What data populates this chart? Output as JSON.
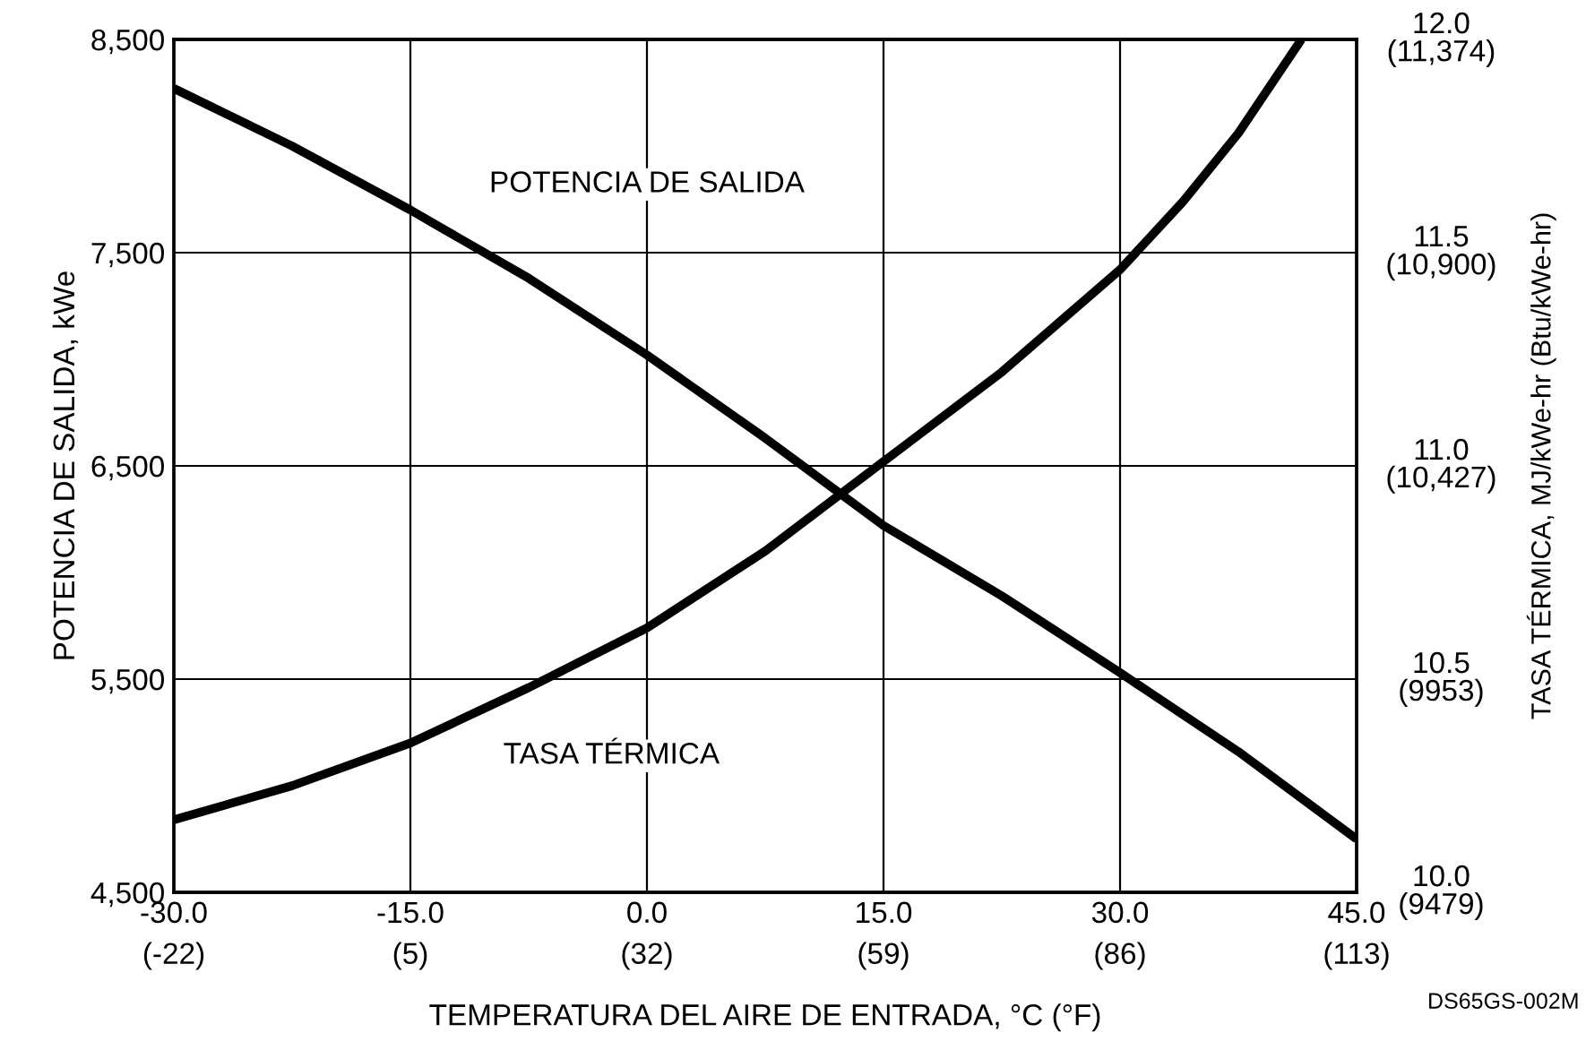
{
  "chart_data": {
    "type": "line",
    "xlabel": "TEMPERATURA DEL AIRE DE ENTRADA, °C (°F)",
    "ylabel": "POTENCIA DE SALIDA, kWe",
    "y2label": "TASA TÉRMICA, MJ/kWe-hr (Btu/kWe-hr)",
    "xlim": [
      -30,
      45
    ],
    "xticks": [
      {
        "value": -30,
        "label": "-30.0"
      },
      {
        "value": -15,
        "label": "-15.0"
      },
      {
        "value": 0,
        "label": "0.0"
      },
      {
        "value": 15,
        "label": "15.0"
      },
      {
        "value": 30,
        "label": "30.0"
      },
      {
        "value": 45,
        "label": "45.0"
      }
    ],
    "x2lim": [
      -22,
      113
    ],
    "x2ticks": [
      {
        "value": -22,
        "label": "(-22)"
      },
      {
        "value": 5,
        "label": "(5)"
      },
      {
        "value": 32,
        "label": "(32)"
      },
      {
        "value": 59,
        "label": "(59)"
      },
      {
        "value": 86,
        "label": "(86)"
      },
      {
        "value": 113,
        "label": "(113)"
      }
    ],
    "ylim": [
      4500,
      8500
    ],
    "yticks": [
      {
        "value": 4500,
        "label": "4,500"
      },
      {
        "value": 5500,
        "label": "5,500"
      },
      {
        "value": 6500,
        "label": "6,500"
      },
      {
        "value": 7500,
        "label": "7,500"
      },
      {
        "value": 8500,
        "label": "8,500"
      }
    ],
    "y2lim": [
      10.0,
      12.0
    ],
    "y2ticks": [
      {
        "value": 10.0,
        "label": "10.0"
      },
      {
        "value": 10.5,
        "label": "10.5"
      },
      {
        "value": 11.0,
        "label": "11.0"
      },
      {
        "value": 11.5,
        "label": "11.5"
      },
      {
        "value": 12.0,
        "label": "12.0"
      }
    ],
    "y3lim": [
      9479,
      11374
    ],
    "y3ticks": [
      {
        "value": 9479,
        "label": "(9479)"
      },
      {
        "value": 9953,
        "label": "(9953)"
      },
      {
        "value": 10427,
        "label": "(10,427)"
      },
      {
        "value": 10900,
        "label": "(10,900)"
      },
      {
        "value": 11374,
        "label": "(11,374)"
      }
    ],
    "grid": true,
    "series": [
      {
        "color": "#000000",
        "x": [
          -30,
          -22.5,
          -15,
          -7.5,
          0,
          7.5,
          15,
          22.5,
          30,
          37.5,
          45
        ],
        "values": [
          8270,
          8000,
          7700,
          7380,
          7020,
          6630,
          6220,
          5890,
          5530,
          5160,
          4750
        ]
      },
      {
        "color": "#000000",
        "axis": "y2",
        "x": [
          -30,
          -22.5,
          -15,
          -7.5,
          0,
          7.5,
          15,
          22.5,
          30,
          34,
          37.5,
          41.5
        ],
        "values": [
          10.17,
          10.25,
          10.35,
          10.48,
          10.62,
          10.8,
          11.01,
          11.22,
          11.46,
          11.62,
          11.78,
          12.0
        ]
      }
    ],
    "annotations": [
      "POTENCIA DE SALIDA",
      "TASA TÉRMICA",
      "DS65GS-002M"
    ]
  }
}
